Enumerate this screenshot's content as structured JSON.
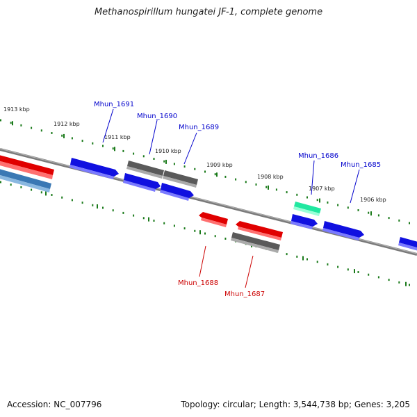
{
  "title": "Methanospirillum hungatei JF-1, complete genome",
  "footer": {
    "accession": "Accession: NC_007796",
    "summary": "Topology: circular; Length: 3,544,738 bp; Genes: 3,205"
  },
  "colors": {
    "backbone": "#888888",
    "ticks": "#1a7a1a",
    "forward_label": "#0000cc",
    "reverse_label": "#cc0000",
    "blue": "#1010e0",
    "gray": "#5a5a5a",
    "red": "#e00000",
    "steelblue": "#3a78b4",
    "teal": "#20e8a0"
  },
  "scale": {
    "outer_tick_labels": [
      "1913 kbp",
      "1912 kbp",
      "1911 kbp",
      "1910 kbp",
      "1909 kbp",
      "1908 kbp",
      "1907 kbp",
      "1906 kbp"
    ]
  },
  "gene_labels": {
    "forward": [
      "Mhun_1691",
      "Mhun_1690",
      "Mhun_1689",
      "Mhun_1686",
      "Mhun_1685"
    ],
    "reverse": [
      "Mhun_1688",
      "Mhun_1687"
    ]
  }
}
